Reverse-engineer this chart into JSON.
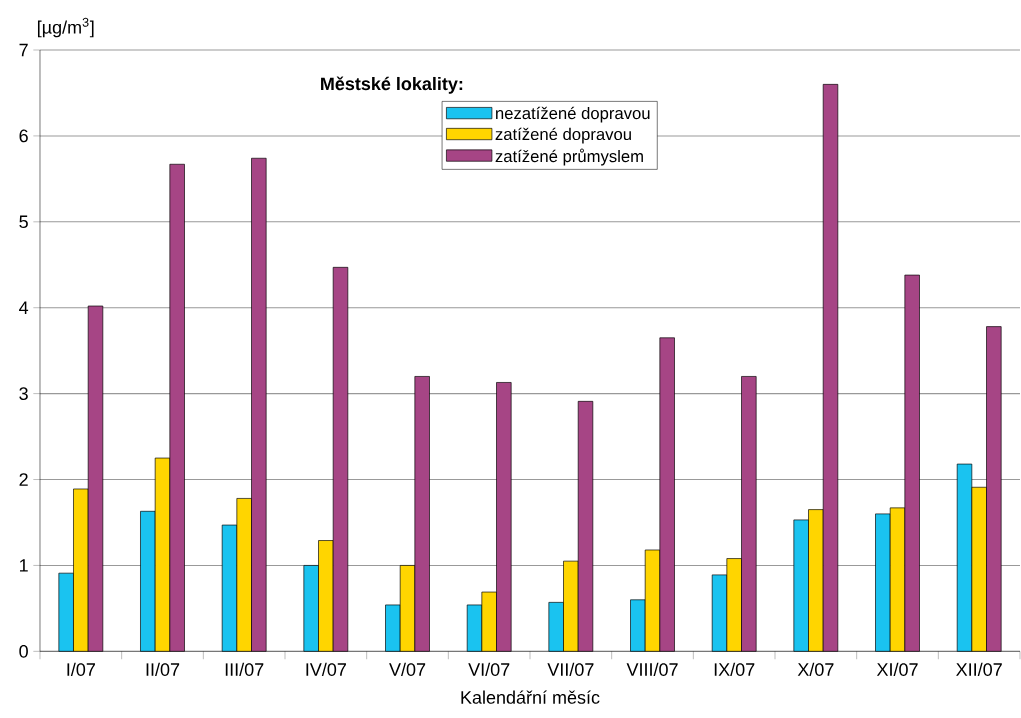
{
  "chart_data": {
    "type": "bar",
    "categories": [
      "I/07",
      "II/07",
      "III/07",
      "IV/07",
      "V/07",
      "VI/07",
      "VII/07",
      "VIII/07",
      "IX/07",
      "X/07",
      "XI/07",
      "XII/07"
    ],
    "series": [
      {
        "name": "nezatížené dopravou",
        "color": "#1ac3f0",
        "values": [
          0.91,
          1.63,
          1.47,
          1.0,
          0.54,
          0.54,
          0.57,
          0.6,
          0.89,
          1.53,
          1.6,
          2.18
        ]
      },
      {
        "name": "zatížené dopravou",
        "color": "#ffd500",
        "values": [
          1.89,
          2.25,
          1.78,
          1.29,
          1.0,
          0.69,
          1.05,
          1.18,
          1.08,
          1.65,
          1.67,
          1.91
        ]
      },
      {
        "name": "zatížené průmyslem",
        "color": "#a64585",
        "values": [
          4.02,
          5.67,
          5.74,
          4.47,
          3.2,
          3.13,
          2.91,
          3.65,
          3.2,
          6.6,
          4.38,
          3.78
        ]
      }
    ],
    "ylabel": "[µg/m$^{3}$]",
    "xlabel": "Kalendářní měsíc",
    "legend_title": "Městské lokality:",
    "ylim": [
      0,
      7
    ],
    "yticks": [
      0,
      1,
      2,
      3,
      4,
      5,
      6,
      7
    ],
    "grid": "y",
    "legend": "top"
  }
}
